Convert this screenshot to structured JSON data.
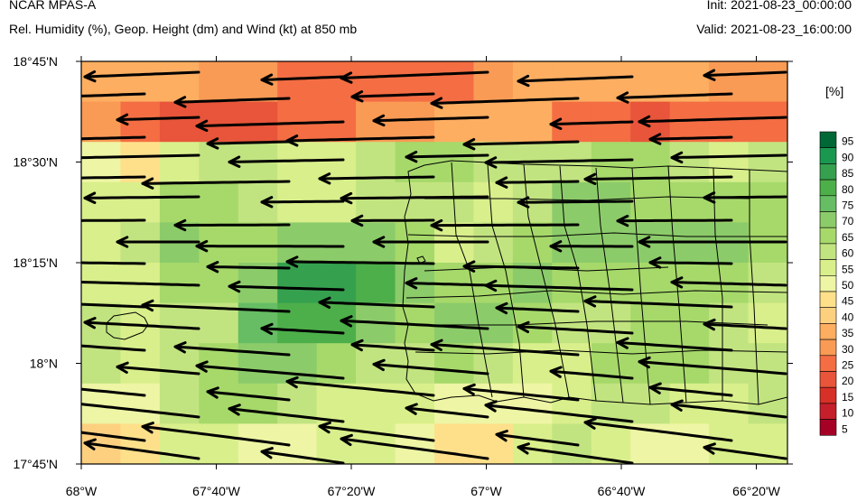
{
  "header": {
    "title": "NCAR MPAS-A",
    "subtitle": "Rel. Humidity (%), Geop. Height (dm) and Wind (kt) at 850 mb",
    "init": "Init: 2021-08-23_00:00:00",
    "valid": "Valid: 2021-08-23_16:00:00"
  },
  "map": {
    "lat_labels": [
      "18°45'N",
      "18°30'N",
      "18°15'N",
      "18°N",
      "17°45'N"
    ],
    "lon_labels": [
      "68°W",
      "67°40'W",
      "67°20'W",
      "67°W",
      "66°40'W",
      "66°20'W"
    ],
    "wind_direction": "from east",
    "streamline_color": "#000000"
  },
  "colorbar": {
    "unit_label": "[%]",
    "levels": [
      "95",
      "90",
      "85",
      "80",
      "75",
      "70",
      "65",
      "60",
      "55",
      "50",
      "45",
      "40",
      "35",
      "30",
      "25",
      "20",
      "15",
      "10",
      "5"
    ],
    "colors": [
      "#006837",
      "#1a9850",
      "#35a14f",
      "#4daf4a",
      "#66bd63",
      "#8ccb6a",
      "#a6d96a",
      "#c2e480",
      "#d9ef8b",
      "#eef5a4",
      "#fee08b",
      "#fdd080",
      "#fdae61",
      "#f99b55",
      "#f46d43",
      "#e8553a",
      "#d73027",
      "#c61f2c",
      "#a50026"
    ]
  }
}
